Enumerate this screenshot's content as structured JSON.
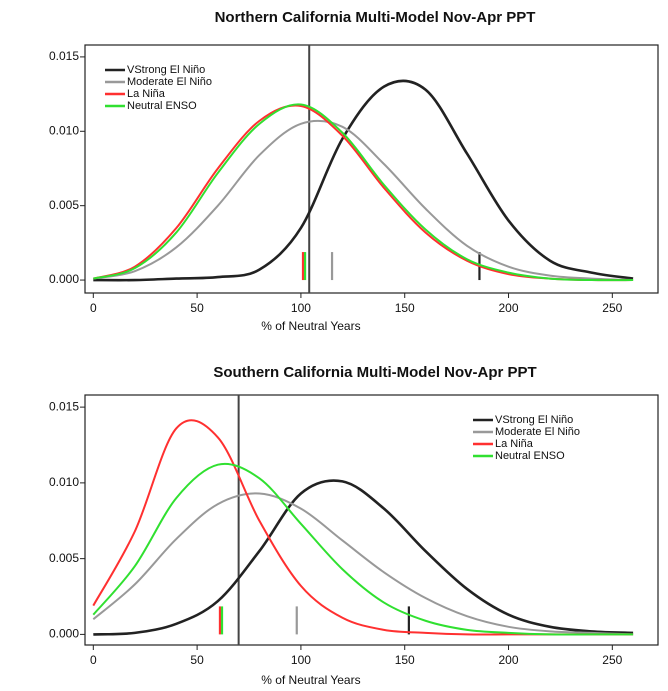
{
  "chart_data": [
    {
      "type": "line",
      "title": "Northern California Multi-Model Nov-Apr PPT",
      "x_label": "% of Neutral Years",
      "x": [
        0,
        20,
        40,
        60,
        80,
        100,
        120,
        140,
        160,
        180,
        200,
        220,
        240,
        260
      ],
      "xlim": [
        -4,
        272
      ],
      "xticks": [
        0,
        50,
        100,
        150,
        200,
        250
      ],
      "ylim": [
        -0.00087,
        0.0158
      ],
      "yticks": [
        {
          "value": 0,
          "label": "0.000"
        },
        0.005,
        {
          "value": 0.01,
          "label": "0.010"
        },
        0.015
      ],
      "legend": "upper left",
      "vline": 104,
      "series": [
        {
          "name": "VStrong El Niño",
          "color": "#222222",
          "mean": 186,
          "values": [
            0,
            0,
            0.0001,
            0.0002,
            0.0007,
            0.0035,
            0.0095,
            0.013,
            0.0128,
            0.0085,
            0.004,
            0.0013,
            0.0005,
            0.0001
          ]
        },
        {
          "name": "Moderate El Niño",
          "color": "#999999",
          "mean": 115,
          "values": [
            0.0001,
            0.0006,
            0.0022,
            0.005,
            0.0084,
            0.0105,
            0.0103,
            0.0078,
            0.0048,
            0.0023,
            0.0009,
            0.0003,
            0.0001,
            0
          ]
        },
        {
          "name": "La Niña",
          "color": "#ff3030",
          "mean": 101,
          "values": [
            0.0001,
            0.0009,
            0.0035,
            0.0075,
            0.0107,
            0.0117,
            0.0097,
            0.0062,
            0.0032,
            0.0013,
            0.0004,
            0.0001,
            0,
            0
          ]
        },
        {
          "name": "Neutral ENSO",
          "color": "#30e030",
          "mean": 102,
          "values": [
            0.0001,
            0.0008,
            0.0032,
            0.0072,
            0.0105,
            0.0118,
            0.0099,
            0.0064,
            0.0034,
            0.0014,
            0.0005,
            0.0001,
            0,
            0
          ]
        }
      ]
    },
    {
      "type": "line",
      "title": "Southern California Multi-Model Nov-Apr PPT",
      "x_label": "% of Neutral Years",
      "x": [
        0,
        20,
        40,
        60,
        80,
        100,
        120,
        140,
        160,
        180,
        200,
        220,
        240,
        260
      ],
      "xlim": [
        -4,
        272
      ],
      "xticks": [
        0,
        50,
        100,
        150,
        200,
        250
      ],
      "ylim": [
        -0.0007,
        0.0158
      ],
      "yticks": [
        {
          "value": 0,
          "label": "0.000"
        },
        0.005,
        {
          "value": 0.01,
          "label": "0.010"
        },
        0.015
      ],
      "legend": "upper right",
      "vline": 70,
      "series": [
        {
          "name": "VStrong El Niño",
          "color": "#222222",
          "mean": 152,
          "values": [
            0,
            0.0001,
            0.0007,
            0.0022,
            0.0055,
            0.0093,
            0.0101,
            0.0083,
            0.0055,
            0.003,
            0.0013,
            0.0005,
            0.0002,
            0.0001
          ]
        },
        {
          "name": "Moderate El Niño",
          "color": "#999999",
          "mean": 98,
          "values": [
            0.001,
            0.0033,
            0.0063,
            0.0086,
            0.0093,
            0.0083,
            0.0062,
            0.0041,
            0.0024,
            0.0012,
            0.0005,
            0.0002,
            0.0001,
            0
          ]
        },
        {
          "name": "La Niña",
          "color": "#ff3030",
          "mean": 61,
          "values": [
            0.0019,
            0.0068,
            0.0136,
            0.013,
            0.0075,
            0.0032,
            0.0011,
            0.0003,
            0.0001,
            0,
            0,
            0,
            0,
            0
          ]
        },
        {
          "name": "Neutral ENSO",
          "color": "#30e030",
          "mean": 62,
          "values": [
            0.0013,
            0.0045,
            0.009,
            0.0112,
            0.0103,
            0.0073,
            0.0043,
            0.0021,
            0.0009,
            0.0003,
            0.0001,
            0,
            0,
            0
          ]
        }
      ]
    }
  ]
}
